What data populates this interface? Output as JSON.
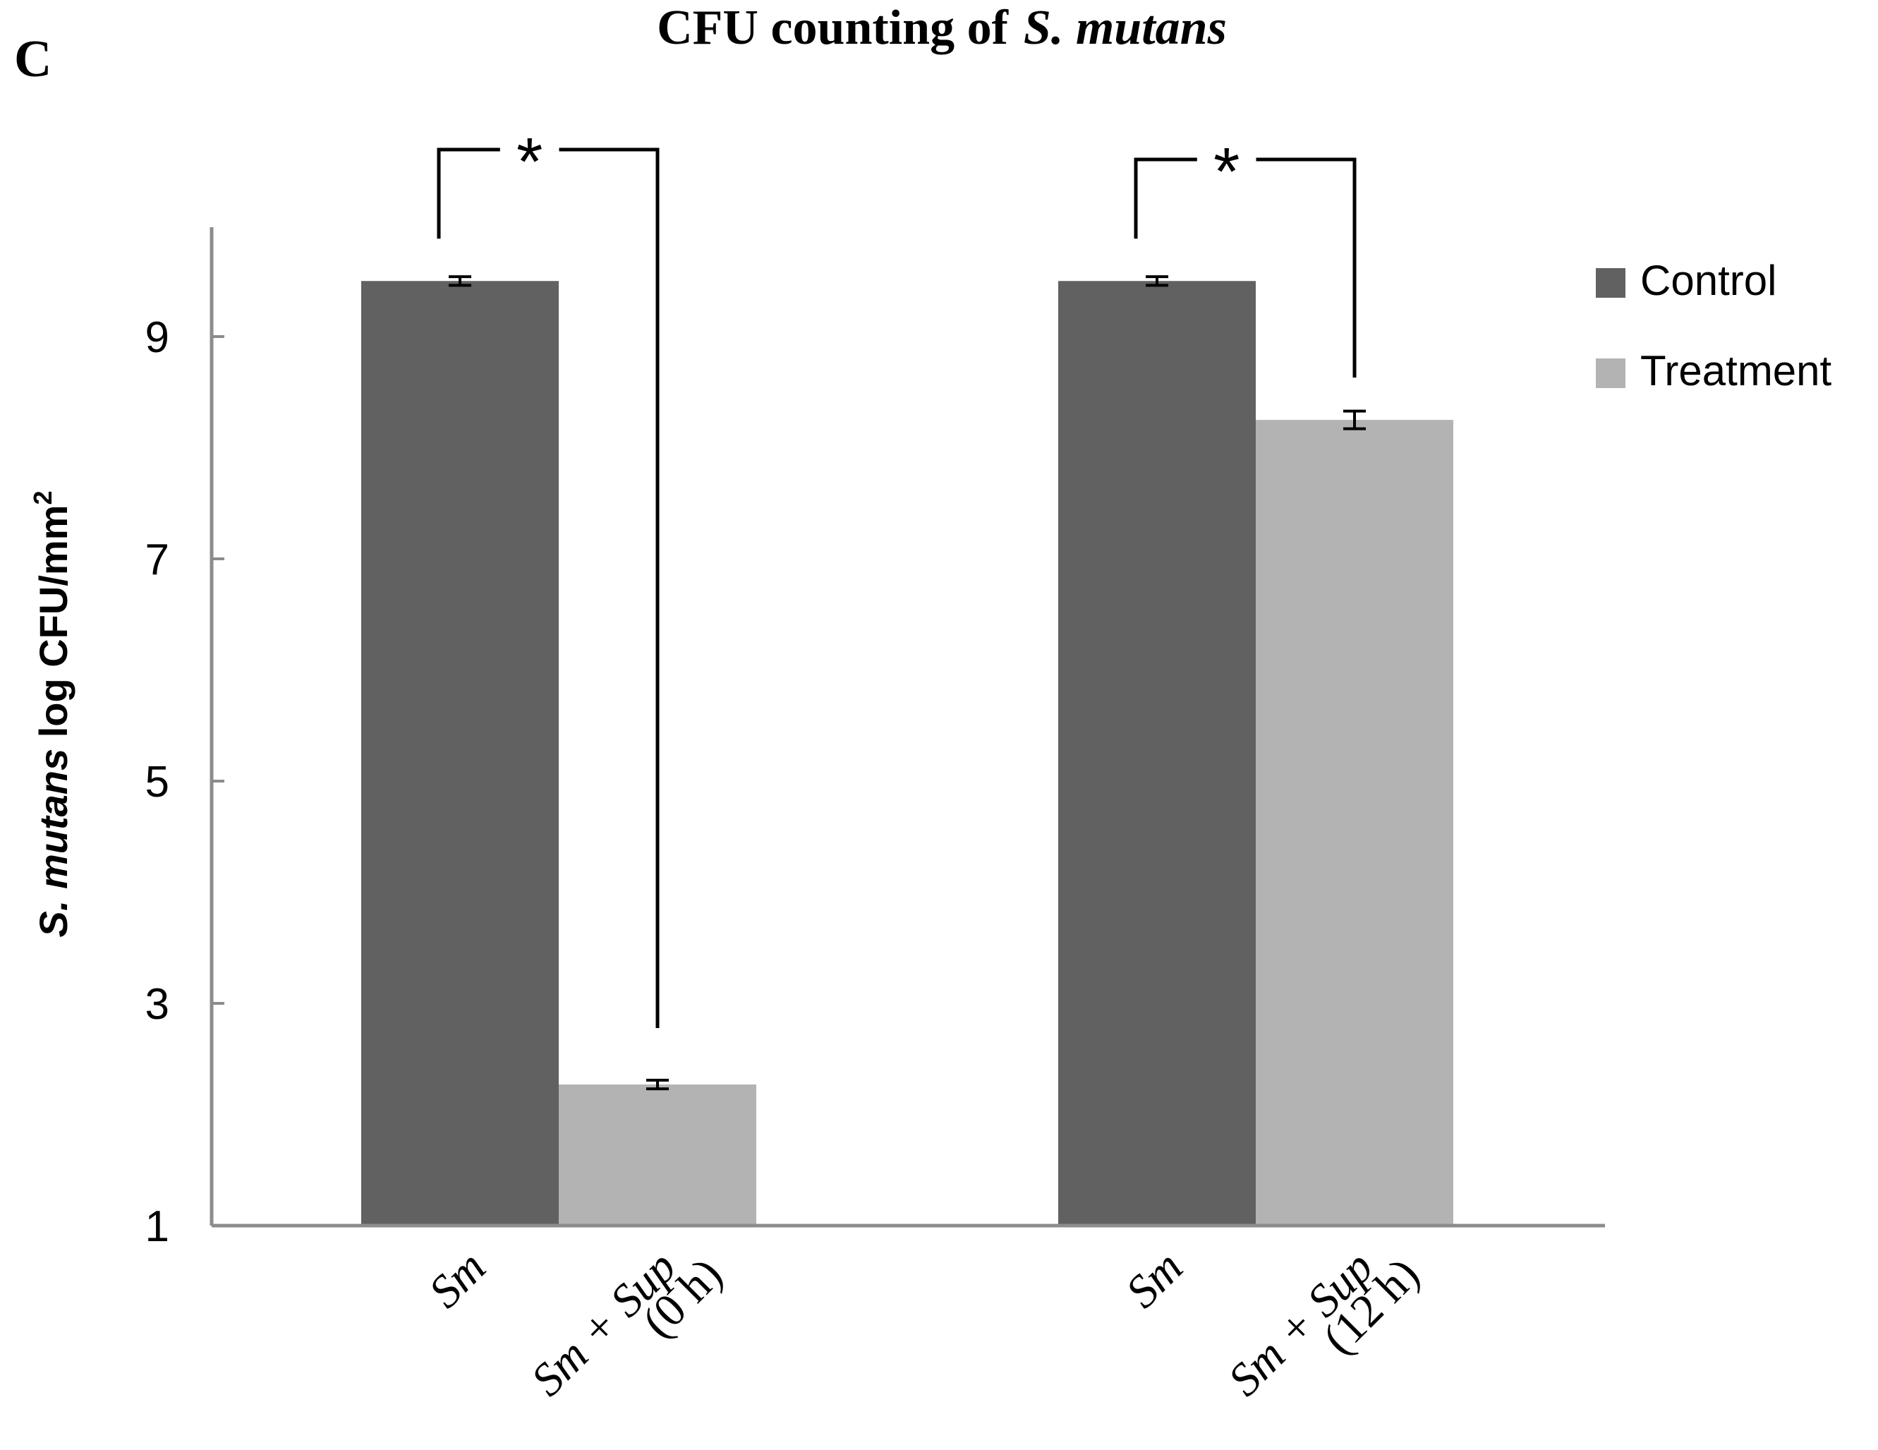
{
  "panel_label": "C",
  "chart_data": {
    "type": "bar",
    "title": "CFU counting of",
    "title_italic": "S. mutans",
    "ylabel_italic": "S. mutans",
    "ylabel_rest": " log CFU/mm",
    "ylabel_sup": "2",
    "ylim": [
      1,
      9.8
    ],
    "yticks": [
      1,
      3,
      5,
      7,
      9
    ],
    "groups": [
      {
        "control_label": "Sm",
        "treatment_label_line1": "Sm + Sup",
        "treatment_label_line2": "(0 h)",
        "control": 9.5,
        "control_err": 0.02,
        "treatment": 2.27,
        "treatment_err": 0.02,
        "significance": "*"
      },
      {
        "control_label": "Sm",
        "treatment_label_line1": "Sm + Sup",
        "treatment_label_line2": "(12 h)",
        "control": 9.5,
        "control_err": 0.02,
        "treatment": 8.25,
        "treatment_err": 0.06,
        "significance": "*"
      }
    ],
    "series": [
      {
        "name": "Control",
        "color": "#616161"
      },
      {
        "name": "Treatment",
        "color": "#b3b3b3"
      }
    ],
    "legend_position": "right"
  }
}
